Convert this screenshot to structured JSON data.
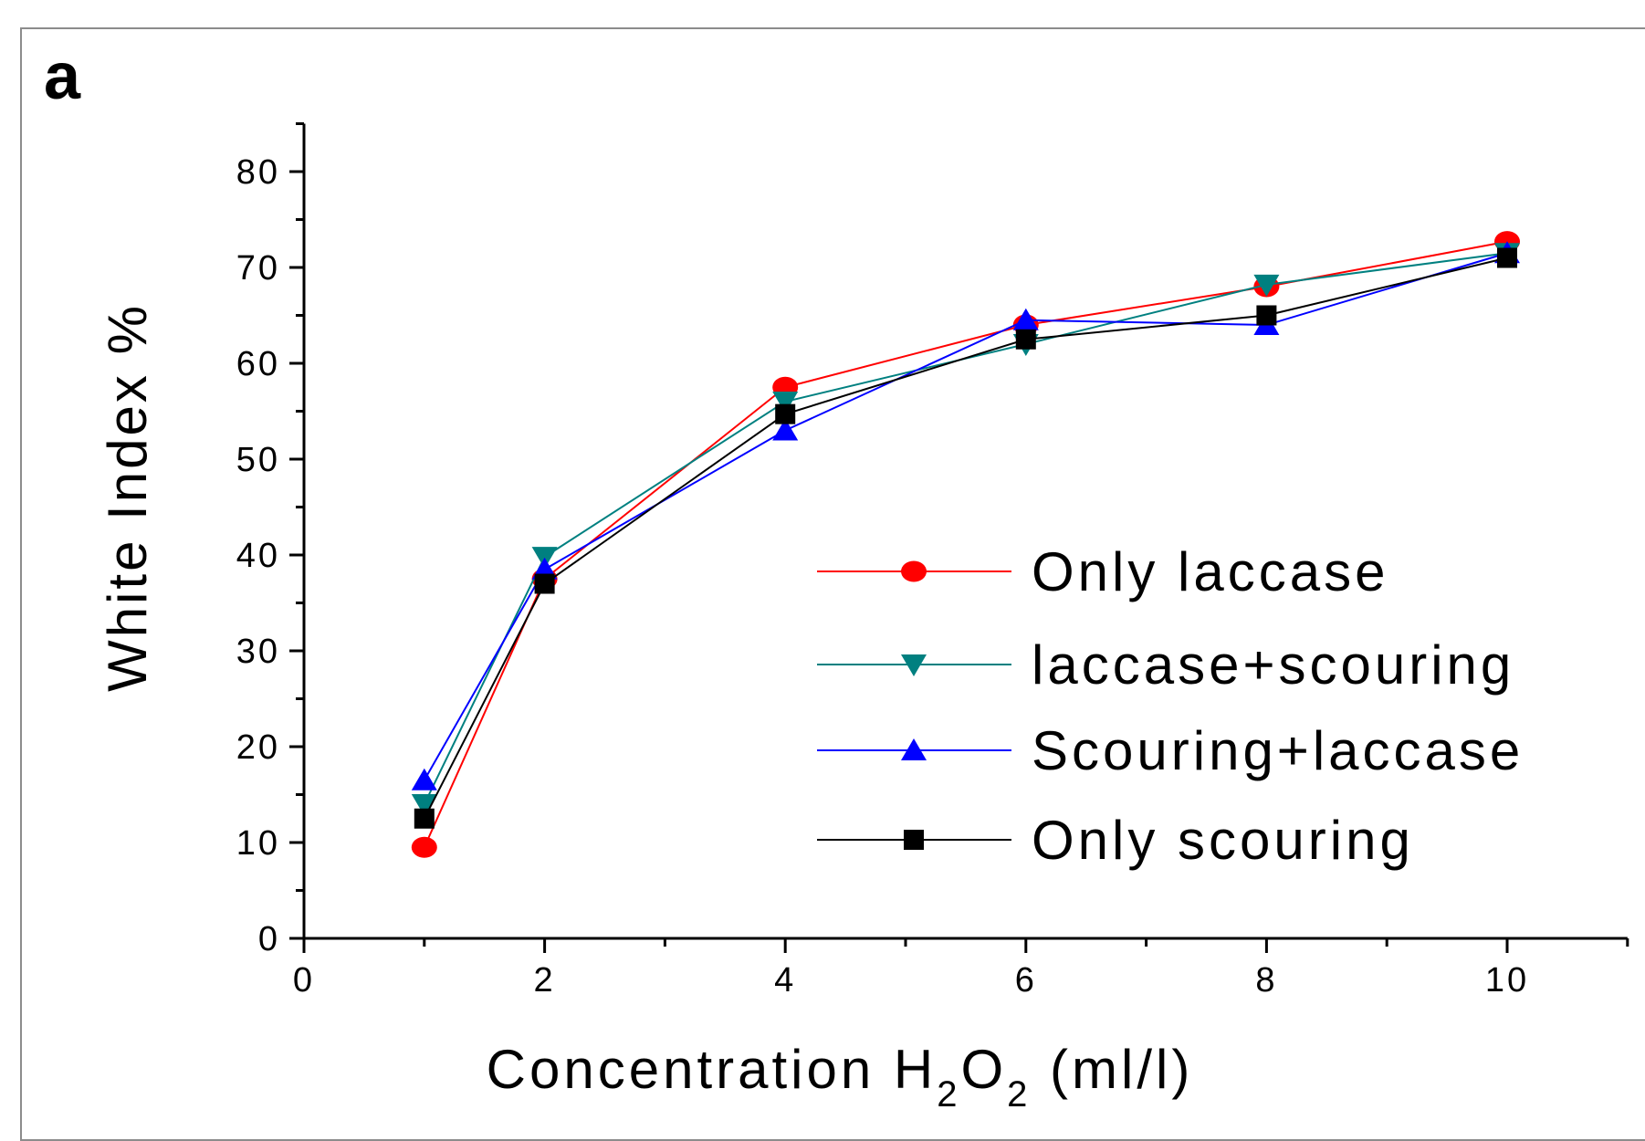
{
  "panel_label": "a",
  "chart_data": {
    "type": "line",
    "title": "",
    "ylabel": "White Index %",
    "xlabel": {
      "prefix": "Concentration H",
      "sub1": "2",
      "mid": "O",
      "sub2": "2",
      "suffix": " (ml/l)"
    },
    "xlim": [
      0,
      11
    ],
    "ylim": [
      0,
      85
    ],
    "xticks": [
      0,
      2,
      4,
      6,
      8,
      10
    ],
    "yticks": [
      0,
      10,
      20,
      30,
      40,
      50,
      60,
      70,
      80
    ],
    "x": [
      1,
      2,
      4,
      6,
      8,
      10
    ],
    "legend_position": "center-right",
    "series": [
      {
        "name": "Only laccase",
        "color": "#ff0000",
        "marker": "circle",
        "values": [
          9.5,
          37.5,
          57.5,
          64,
          68,
          72.7
        ]
      },
      {
        "name": "laccase+scouring",
        "color": "#008080",
        "marker": "triangle-down",
        "values": [
          14,
          39.8,
          56,
          62,
          68.2,
          71.5
        ]
      },
      {
        "name": "Scouring+laccase",
        "color": "#0000ff",
        "marker": "triangle-up",
        "values": [
          16.5,
          38.5,
          53,
          64.5,
          64,
          71.5
        ]
      },
      {
        "name": "Only scouring",
        "color": "#000000",
        "marker": "square",
        "values": [
          12.5,
          37,
          54.7,
          62.5,
          65,
          71
        ]
      }
    ]
  }
}
